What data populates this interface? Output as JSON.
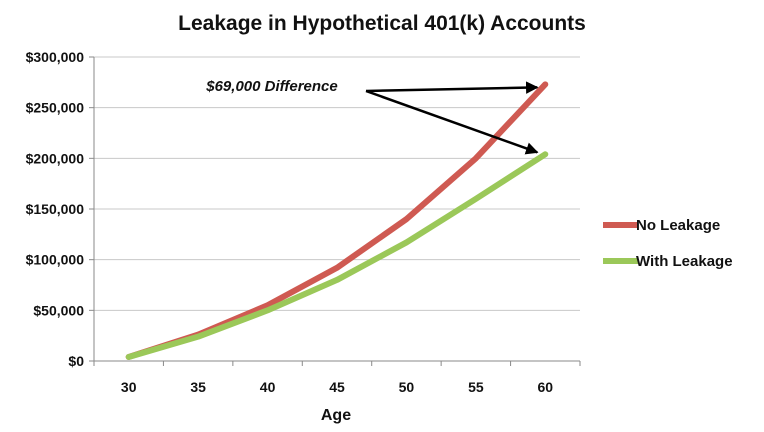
{
  "chart_data": {
    "type": "line",
    "title": "Leakage in Hypothetical 401(k) Accounts",
    "xlabel": "Age",
    "ylabel": "",
    "x": [
      30,
      35,
      40,
      45,
      50,
      55,
      60
    ],
    "xlim": [
      27.5,
      62.5
    ],
    "ylim": [
      0,
      300000
    ],
    "yticks": [
      0,
      50000,
      100000,
      150000,
      200000,
      250000,
      300000
    ],
    "ytick_labels": [
      "$0",
      "$50,000",
      "$100,000",
      "$150,000",
      "$200,000",
      "$250,000",
      "$300,000"
    ],
    "grid": true,
    "legend_position": "right",
    "series": [
      {
        "name": "No Leakage",
        "color": "#cf5a52",
        "values": [
          4000,
          26000,
          55000,
          92000,
          140000,
          200000,
          273000
        ]
      },
      {
        "name": "With Leakage",
        "color": "#9bc859",
        "values": [
          4000,
          24000,
          50000,
          80000,
          117000,
          160000,
          204000
        ]
      }
    ],
    "annotation": {
      "text": "$69,000 Difference",
      "targets_x": [
        60,
        60
      ],
      "targets_y": [
        273000,
        204000
      ]
    }
  }
}
